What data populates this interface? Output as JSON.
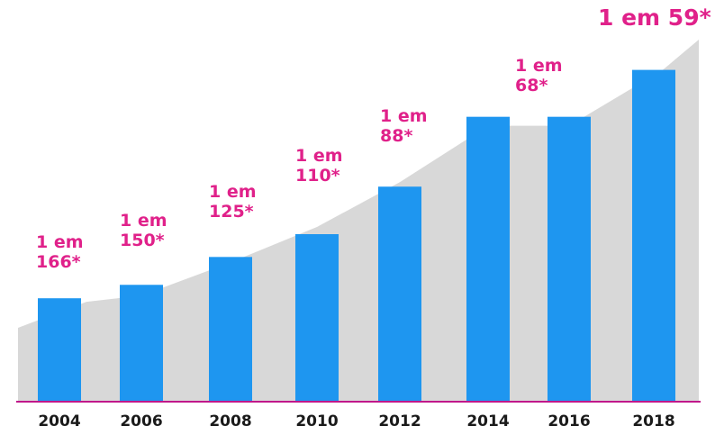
{
  "chart_data": {
    "type": "bar",
    "categories": [
      "2004",
      "2006",
      "2008",
      "2010",
      "2012",
      "2014",
      "2016",
      "2018"
    ],
    "values": [
      166,
      150,
      125,
      110,
      88,
      68,
      68,
      59
    ],
    "data_labels": [
      [
        "1 em",
        "166*"
      ],
      [
        "1 em",
        "150*"
      ],
      [
        "1 em",
        "125*"
      ],
      [
        "1 em",
        "110*"
      ],
      [
        "1 em",
        "88*"
      ],
      [
        "",
        ""
      ],
      [
        "1 em",
        "68*"
      ],
      [
        "1 em 59*"
      ]
    ],
    "title": "",
    "xlabel": "",
    "ylabel": "",
    "grid": false,
    "legend": "none"
  },
  "colors": {
    "bar": "#1e96f0",
    "area": "#d8d8d8",
    "baseline": "#c0188a",
    "label": "#e0218a",
    "tick": "#1a1a1a"
  }
}
